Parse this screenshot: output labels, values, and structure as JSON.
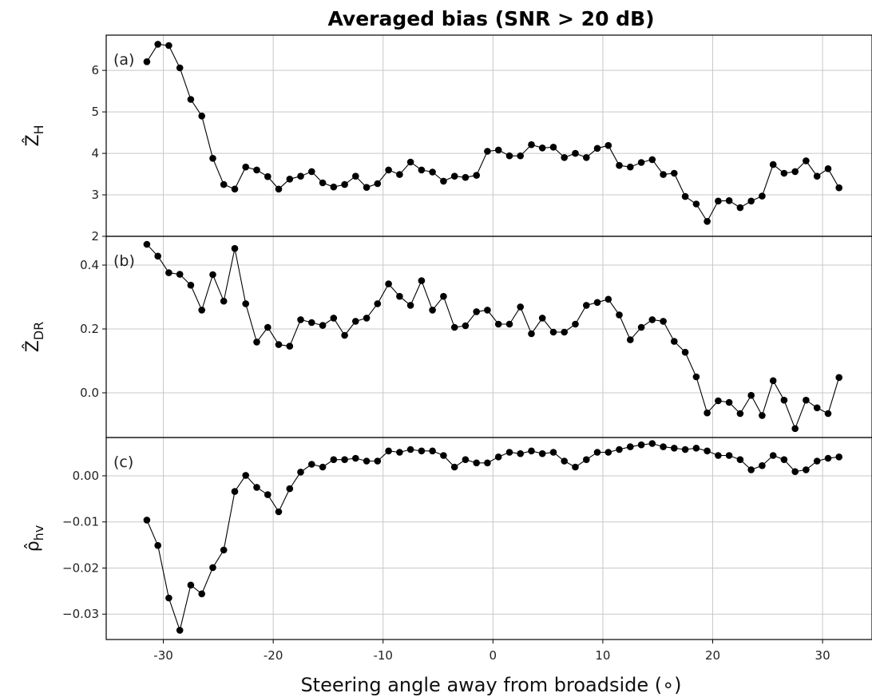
{
  "chart_data": {
    "title": "Averaged bias (SNR > 20 dB)",
    "type": "line",
    "xlabel": "Steering angle away from broadside (∘)",
    "xlim": [
      -35.2,
      34.5
    ],
    "xticks": [
      -30,
      -20,
      -10,
      0,
      10,
      20,
      30
    ],
    "xtick_labels": [
      "-30",
      "-20",
      "-10",
      "0",
      "10",
      "20",
      "30"
    ],
    "x": [
      -31.5,
      -30.5,
      -29.5,
      -28.5,
      -27.5,
      -26.5,
      -25.5,
      -24.5,
      -23.5,
      -22.5,
      -21.5,
      -20.5,
      -19.5,
      -18.5,
      -17.5,
      -16.5,
      -15.5,
      -14.5,
      -13.5,
      -12.5,
      -11.5,
      -10.5,
      -9.5,
      -8.5,
      -7.5,
      -6.5,
      -5.5,
      -4.5,
      -3.5,
      -2.5,
      -1.5,
      -0.5,
      0.5,
      1.5,
      2.5,
      3.5,
      4.5,
      5.5,
      6.5,
      7.5,
      8.5,
      9.5,
      10.5,
      11.5,
      12.5,
      13.5,
      14.5,
      15.5,
      16.5,
      17.5,
      18.5,
      19.5,
      20.5,
      21.5,
      22.5,
      23.5,
      24.5,
      25.5,
      26.5,
      27.5,
      28.5,
      29.5,
      30.5,
      31.5
    ],
    "grid": true,
    "panels": [
      {
        "label": "(a)",
        "ylabel": "Ẑ",
        "ylabel_sub": "H",
        "ylim": [
          2.0,
          6.85
        ],
        "yticks": [
          2,
          3,
          4,
          5,
          6
        ],
        "ytick_labels": [
          "2",
          "3",
          "4",
          "5",
          "6"
        ],
        "values": [
          6.21,
          6.63,
          6.6,
          6.06,
          5.3,
          4.9,
          3.88,
          3.25,
          3.14,
          3.67,
          3.6,
          3.44,
          3.14,
          3.38,
          3.45,
          3.56,
          3.29,
          3.19,
          3.25,
          3.45,
          3.18,
          3.27,
          3.6,
          3.49,
          3.79,
          3.6,
          3.55,
          3.33,
          3.45,
          3.42,
          3.47,
          4.05,
          4.08,
          3.94,
          3.94,
          4.21,
          4.13,
          4.15,
          3.9,
          4.0,
          3.9,
          4.12,
          4.19,
          3.71,
          3.67,
          3.78,
          3.85,
          3.49,
          3.52,
          2.96,
          2.78,
          2.36,
          2.85,
          2.86,
          2.69,
          2.85,
          2.97,
          3.73,
          3.52,
          3.56,
          3.82,
          3.45,
          3.63,
          3.17
        ]
      },
      {
        "label": "(b)",
        "ylabel": "Ẑ",
        "ylabel_sub": "DR",
        "ylim": [
          -0.14,
          0.49
        ],
        "yticks": [
          0.0,
          0.2,
          0.4
        ],
        "ytick_labels": [
          "0.0",
          "0.2",
          "0.4"
        ],
        "values": [
          0.465,
          0.428,
          0.376,
          0.371,
          0.337,
          0.259,
          0.37,
          0.287,
          0.452,
          0.279,
          0.159,
          0.205,
          0.151,
          0.146,
          0.229,
          0.22,
          0.211,
          0.234,
          0.18,
          0.224,
          0.234,
          0.279,
          0.341,
          0.302,
          0.274,
          0.351,
          0.259,
          0.302,
          0.205,
          0.21,
          0.254,
          0.259,
          0.215,
          0.215,
          0.269,
          0.185,
          0.234,
          0.19,
          0.19,
          0.215,
          0.274,
          0.283,
          0.293,
          0.244,
          0.166,
          0.205,
          0.229,
          0.224,
          0.161,
          0.127,
          0.05,
          -0.063,
          -0.025,
          -0.03,
          -0.065,
          -0.008,
          -0.071,
          0.038,
          -0.023,
          -0.112,
          -0.023,
          -0.047,
          -0.065,
          0.048
        ]
      },
      {
        "label": "(c)",
        "ylabel": "ρ̂",
        "ylabel_sub": "hv",
        "ylim": [
          -0.0355,
          0.0083
        ],
        "yticks": [
          -0.03,
          -0.02,
          -0.01,
          0.0
        ],
        "ytick_labels": [
          "−0.03",
          "−0.02",
          "−0.01",
          "0.00"
        ],
        "values": [
          -0.0096,
          -0.0151,
          -0.0265,
          -0.0335,
          -0.0237,
          -0.0256,
          -0.0199,
          -0.0161,
          -0.0034,
          0.0001,
          -0.0025,
          -0.0041,
          -0.0078,
          -0.0028,
          0.0008,
          0.0025,
          0.0019,
          0.0035,
          0.0035,
          0.0038,
          0.0032,
          0.0032,
          0.0054,
          0.0051,
          0.0057,
          0.0054,
          0.0054,
          0.0044,
          0.0019,
          0.0035,
          0.0028,
          0.0028,
          0.0041,
          0.0051,
          0.0048,
          0.0054,
          0.0048,
          0.0051,
          0.0032,
          0.0019,
          0.0035,
          0.0051,
          0.0051,
          0.0057,
          0.0063,
          0.0067,
          0.007,
          0.0063,
          0.006,
          0.0057,
          0.006,
          0.0054,
          0.0044,
          0.0044,
          0.0035,
          0.0013,
          0.0022,
          0.0044,
          0.0035,
          0.0009,
          0.0013,
          0.0032,
          0.0038,
          0.0041
        ]
      }
    ]
  }
}
